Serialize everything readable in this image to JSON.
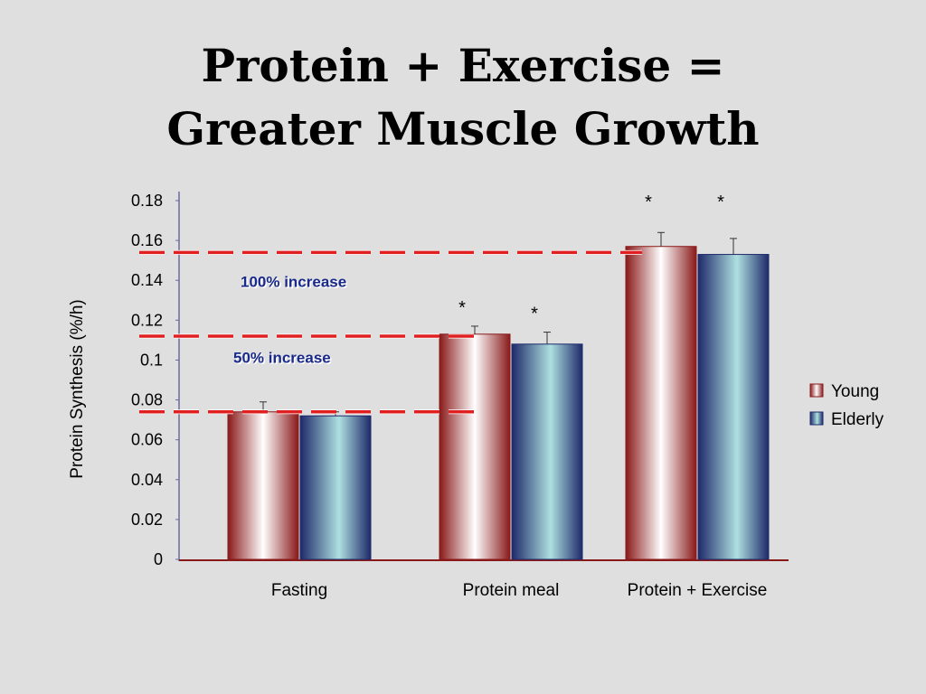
{
  "slide": {
    "title_line1": "Protein + Exercise =",
    "title_line2": "Greater Muscle Growth"
  },
  "colors": {
    "young_dark": "#8a1a1a",
    "young_light": "#ffffff",
    "elderly_dark": "#1e2a6a",
    "elderly_light": "#aee0e0",
    "reference_line": "#e02020",
    "annotation_text": "#1a2a8a"
  },
  "chart_data": {
    "type": "bar",
    "title": "",
    "xlabel": "",
    "ylabel": "Protein Synthesis (%/h)",
    "ylim": [
      0,
      0.18
    ],
    "yticks": [
      0,
      0.02,
      0.04,
      0.06,
      0.08,
      0.1,
      0.12,
      0.14,
      0.16,
      0.18
    ],
    "ytick_labels": [
      "0",
      "0.02",
      "0.04",
      "0.06",
      "0.08",
      "0.1",
      "0.12",
      "0.14",
      "0.16",
      "0.18"
    ],
    "categories": [
      "Fasting",
      "Protein meal",
      "Protein + Exercise"
    ],
    "series": [
      {
        "name": "Young",
        "values": [
          0.074,
          0.113,
          0.157
        ],
        "errors": [
          0.005,
          0.004,
          0.007
        ]
      },
      {
        "name": "Elderly",
        "values": [
          0.072,
          0.108,
          0.153
        ],
        "errors": [
          0.002,
          0.006,
          0.008
        ]
      }
    ],
    "significance_marks": [
      {
        "category_index": 1,
        "series_index": 0,
        "label": "*"
      },
      {
        "category_index": 1,
        "series_index": 1,
        "label": "*"
      },
      {
        "category_index": 2,
        "series_index": 0,
        "label": "*"
      },
      {
        "category_index": 2,
        "series_index": 1,
        "label": "*"
      }
    ],
    "reference_lines": [
      {
        "value": 0.074,
        "span_to_category": 1
      },
      {
        "value": 0.112,
        "span_to_category": 1
      },
      {
        "value": 0.154,
        "span_to_category": 2
      }
    ],
    "annotations": [
      {
        "text": "100% increase",
        "value": 0.134
      },
      {
        "text": "50% increase",
        "value": 0.096
      }
    ],
    "legend": {
      "position": "right",
      "entries": [
        "Young",
        "Elderly"
      ]
    },
    "grid": false
  }
}
